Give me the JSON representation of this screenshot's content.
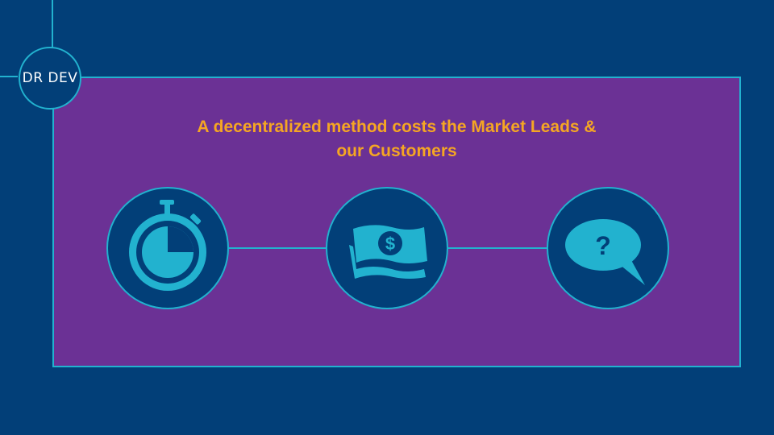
{
  "logo": {
    "text": "DR DEV"
  },
  "slide": {
    "title_line1": "A decentralized method costs the Market Leads &",
    "title_line2": "our Customers"
  },
  "icons": [
    {
      "name": "stopwatch-icon"
    },
    {
      "name": "money-icon",
      "symbol": "$"
    },
    {
      "name": "speech-bubble-question-icon",
      "symbol": "?"
    }
  ],
  "colors": {
    "background": "#023f78",
    "panel": "#6b3195",
    "accent": "#22b2cf",
    "title": "#f5a623",
    "logo_text": "#ffffff"
  }
}
